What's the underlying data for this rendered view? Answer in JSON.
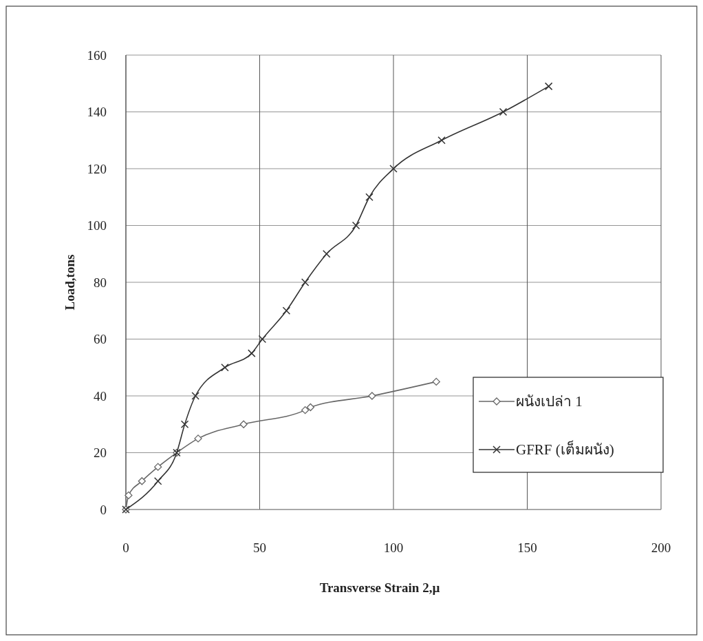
{
  "chart_data": {
    "type": "line",
    "xlabel": "Transverse Strain 2,µ",
    "ylabel": "Load,tons",
    "xlim": [
      0,
      200
    ],
    "xticks": [
      0,
      50,
      100,
      150,
      200
    ],
    "ylim": [
      0,
      160
    ],
    "yticks": [
      0,
      20,
      40,
      60,
      80,
      100,
      120,
      140,
      160
    ],
    "grid": true,
    "legend": "right",
    "series": [
      {
        "name": "ผนังเปล่า 1",
        "color": "#666666",
        "marker": "diamond",
        "x": [
          0,
          1,
          6,
          12,
          19,
          27,
          44,
          67,
          69,
          92,
          116
        ],
        "values": [
          0,
          5,
          10,
          15,
          20,
          25,
          30,
          35,
          36,
          40,
          45
        ]
      },
      {
        "name": "GFRF (เต็มผนัง)",
        "color": "#333333",
        "marker": "cross",
        "x": [
          0,
          12,
          19,
          22,
          26,
          37,
          47,
          51,
          60,
          67,
          75,
          86,
          91,
          100,
          118,
          141,
          158
        ],
        "values": [
          0,
          10,
          20,
          30,
          40,
          50,
          55,
          60,
          70,
          80,
          90,
          100,
          110,
          120,
          130,
          140,
          149
        ]
      }
    ]
  }
}
